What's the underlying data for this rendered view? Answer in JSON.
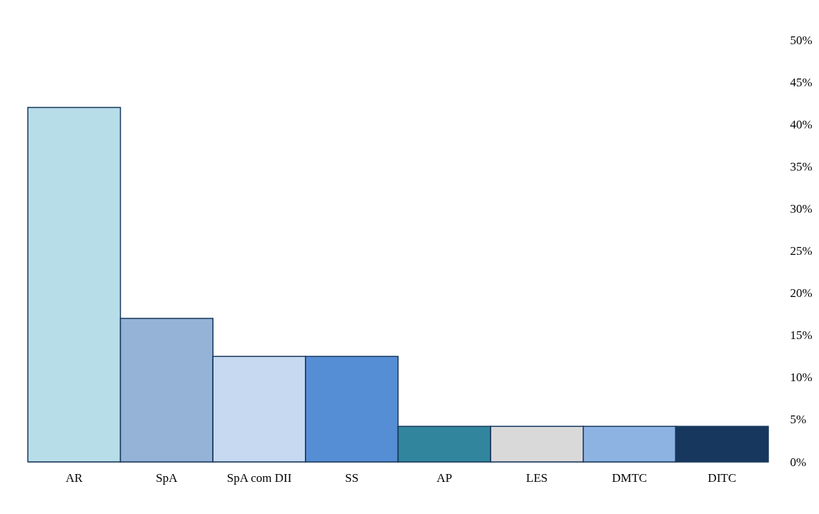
{
  "chart_data": {
    "type": "bar",
    "categories": [
      "AR",
      "SpA",
      "SpA com DII",
      "SS",
      "AP",
      "LES",
      "DMTC",
      "DITC"
    ],
    "values": [
      42,
      17,
      12.5,
      12.5,
      4.2,
      4.2,
      4.2,
      4.2
    ],
    "colors": [
      "#b7dde8",
      "#95b3d7",
      "#c6d9f0",
      "#558ed5",
      "#31859c",
      "#d9d9d9",
      "#8db3e2",
      "#17375e"
    ],
    "ylim": [
      0,
      50
    ],
    "yticks": [
      {
        "value": 0,
        "label": "0%"
      },
      {
        "value": 5,
        "label": "5%"
      },
      {
        "value": 10,
        "label": "10%"
      },
      {
        "value": 15,
        "label": "15%"
      },
      {
        "value": 20,
        "label": "20%"
      },
      {
        "value": 25,
        "label": "25%"
      },
      {
        "value": 30,
        "label": "30%"
      },
      {
        "value": 35,
        "label": "35%"
      },
      {
        "value": 40,
        "label": "40%"
      },
      {
        "value": 45,
        "label": "45%"
      },
      {
        "value": 50,
        "label": "50%"
      }
    ],
    "grid": false,
    "legend": false
  }
}
